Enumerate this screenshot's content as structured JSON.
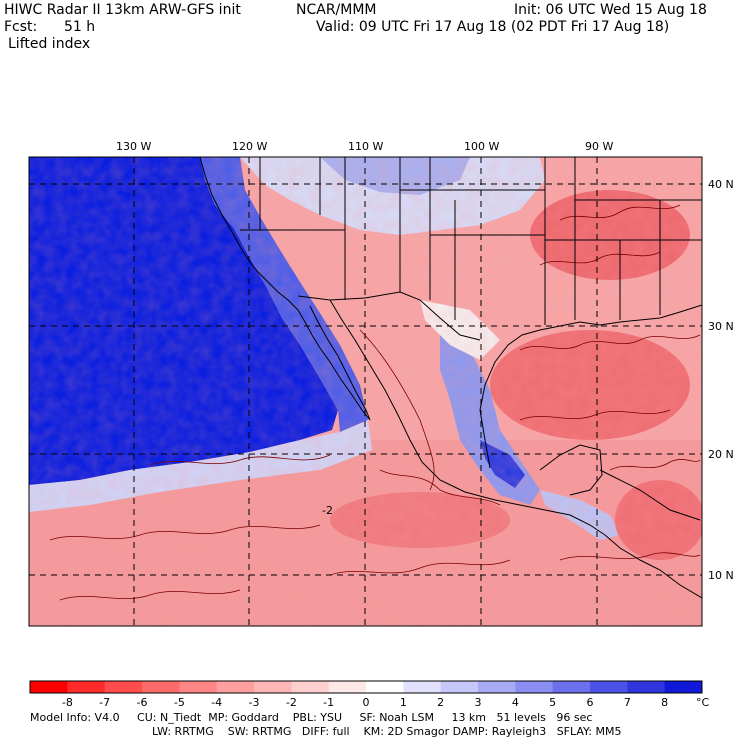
{
  "header": {
    "model_line": "HIWC Radar II 13km ARW-GFS init",
    "org": "NCAR/MMM",
    "init": "Init: 06 UTC Wed 15 Aug 18",
    "fcst_label": "Fcst:",
    "fcst_value": "51 h",
    "valid": "Valid: 09 UTC Fri 17 Aug 18 (02 PDT Fri 17 Aug 18)",
    "field": "Lifted index"
  },
  "map": {
    "lon_labels": [
      "130 W",
      "120 W",
      "110 W",
      "100 W",
      "90 W"
    ],
    "lat_labels": [
      "40 N",
      "30 N",
      "20 N",
      "10 N"
    ],
    "contour_label": "-2",
    "colors": {
      "ocean_blue": "#0a1fe0",
      "land_red": "#f4888a",
      "neutral": "#f4f4f8",
      "border": "#000000"
    }
  },
  "colorbar": {
    "labels": [
      "-8",
      "-7",
      "-6",
      "-5",
      "-4",
      "-3",
      "-2",
      "-1",
      "0",
      "1",
      "2",
      "3",
      "4",
      "5",
      "6",
      "7",
      "8"
    ],
    "unit": "°C",
    "colors": [
      "#ff0000",
      "#ff2a2a",
      "#ff4c4c",
      "#ff6a6a",
      "#ff8686",
      "#ff9f9f",
      "#ffb6b6",
      "#ffcfcf",
      "#ffe8e8",
      "#ffffff",
      "#e2e2ff",
      "#c6c8fb",
      "#a8aaf6",
      "#8a8df1",
      "#6c70ec",
      "#4d52e6",
      "#2f36e0",
      "#1018da"
    ]
  },
  "footer": {
    "line1": "Model Info: V4.0     CU: N_Tiedt  MP: Goddard    PBL: YSU     SF: Noah LSM     13 km   51 levels   96 sec",
    "line2": "LW: RRTMG    SW: RRTMG   DIFF: full    KM: 2D Smagor DAMP: Rayleigh3   SFLAY: MM5"
  }
}
